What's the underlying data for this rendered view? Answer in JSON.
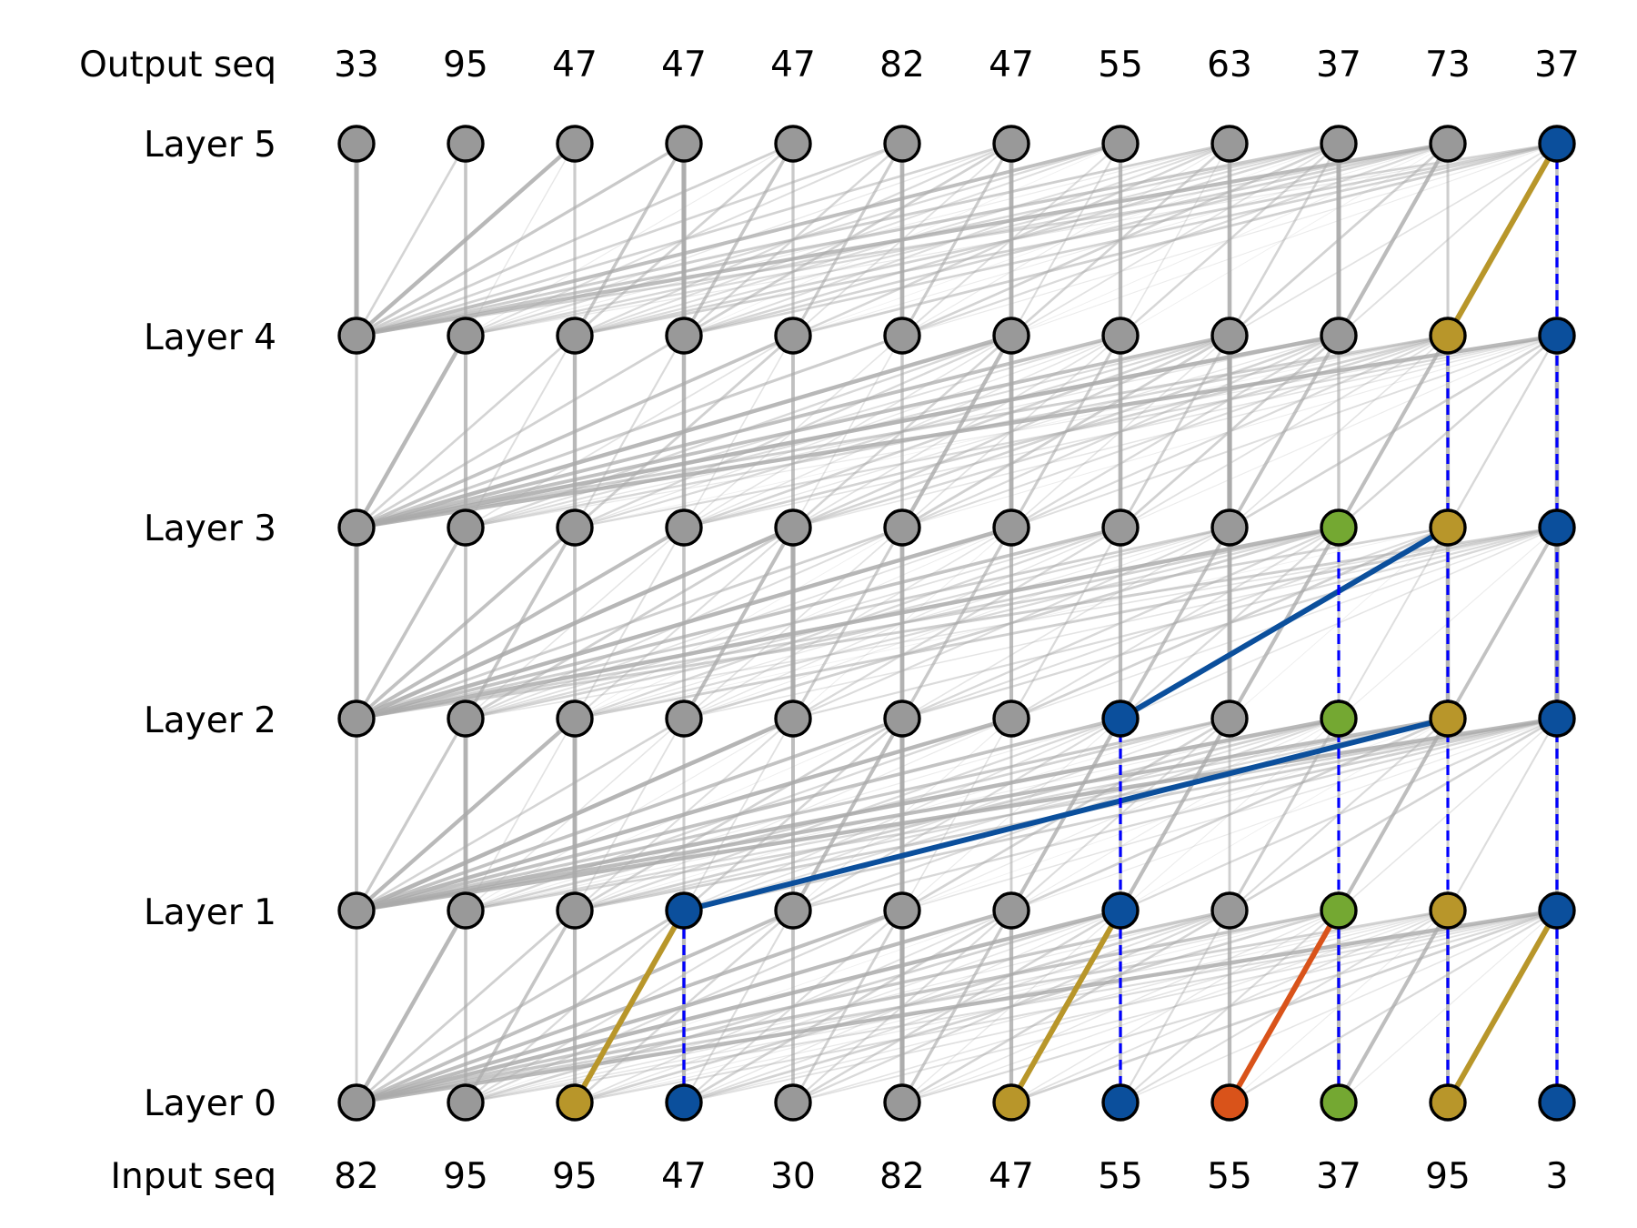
{
  "rows": {
    "output_label": "Output seq",
    "input_label": "Input seq",
    "layer_labels": [
      "Layer 5",
      "Layer 4",
      "Layer 3",
      "Layer 2",
      "Layer 1",
      "Layer 0"
    ]
  },
  "output_seq": [
    "33",
    "95",
    "47",
    "47",
    "47",
    "82",
    "47",
    "55",
    "63",
    "37",
    "73",
    "37"
  ],
  "input_seq": [
    "82",
    "95",
    "95",
    "47",
    "30",
    "82",
    "47",
    "55",
    "55",
    "37",
    "95",
    "3"
  ],
  "palette": {
    "gray": "#999999",
    "blue": "#0b4f9c",
    "gold": "#b8962a",
    "green": "#74a832",
    "orange": "#d9531a",
    "edge_gray": "#aaaaaa",
    "dashed_blue": "#0000ff"
  },
  "node_colors": {
    "layer0": [
      "gray",
      "gray",
      "gold",
      "blue",
      "gray",
      "gray",
      "gold",
      "blue",
      "orange",
      "green",
      "gold",
      "blue"
    ],
    "layer1": [
      "gray",
      "gray",
      "gray",
      "blue",
      "gray",
      "gray",
      "gray",
      "blue",
      "gray",
      "green",
      "gold",
      "blue"
    ],
    "layer2": [
      "gray",
      "gray",
      "gray",
      "gray",
      "gray",
      "gray",
      "gray",
      "blue",
      "gray",
      "green",
      "gold",
      "blue"
    ],
    "layer3": [
      "gray",
      "gray",
      "gray",
      "gray",
      "gray",
      "gray",
      "gray",
      "gray",
      "gray",
      "green",
      "gold",
      "blue"
    ],
    "layer4": [
      "gray",
      "gray",
      "gray",
      "gray",
      "gray",
      "gray",
      "gray",
      "gray",
      "gray",
      "gray",
      "gold",
      "blue"
    ],
    "layer5": [
      "gray",
      "gray",
      "gray",
      "gray",
      "gray",
      "gray",
      "gray",
      "gray",
      "gray",
      "gray",
      "gray",
      "blue"
    ]
  },
  "highlight_edges": [
    {
      "from_layer": 0,
      "from": 2,
      "to_layer": 1,
      "to": 3,
      "color": "gold"
    },
    {
      "from_layer": 0,
      "from": 6,
      "to_layer": 1,
      "to": 7,
      "color": "gold"
    },
    {
      "from_layer": 0,
      "from": 8,
      "to_layer": 1,
      "to": 9,
      "color": "orange"
    },
    {
      "from_layer": 0,
      "from": 10,
      "to_layer": 1,
      "to": 11,
      "color": "gold"
    },
    {
      "from_layer": 1,
      "from": 3,
      "to_layer": 2,
      "to": 10,
      "color": "blue"
    },
    {
      "from_layer": 2,
      "from": 7,
      "to_layer": 3,
      "to": 10,
      "color": "blue"
    },
    {
      "from_layer": 4,
      "from": 10,
      "to_layer": 5,
      "to": 11,
      "color": "gold"
    }
  ],
  "dashed_links": [
    {
      "from_layer": 0,
      "to_layer": 1,
      "col": 3
    },
    {
      "from_layer": 0,
      "to_layer": 2,
      "col": 7
    },
    {
      "from_layer": 0,
      "to_layer": 3,
      "col": 9
    },
    {
      "from_layer": 0,
      "to_layer": 4,
      "col": 10
    },
    {
      "from_layer": 0,
      "to_layer": 5,
      "col": 11
    }
  ]
}
